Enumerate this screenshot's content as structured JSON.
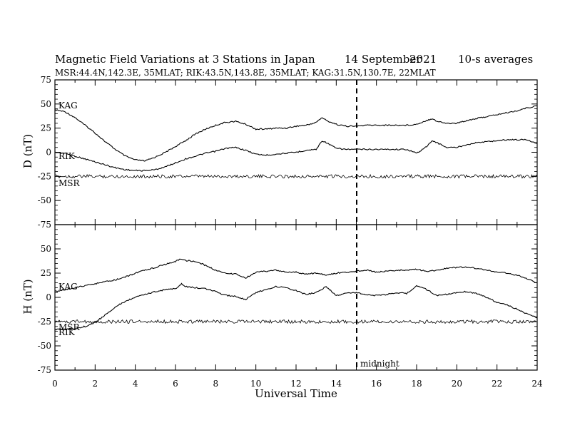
{
  "title": "Magnetic Field Variations at 3 Stations in Japan",
  "date": "14 September",
  "year": "2021",
  "averaging": "10-s averages",
  "stations_line": "MSR:44.4N,142.3E, 35MLAT;  RIK:43.5N,143.8E, 35MLAT;  KAG:31.5N,130.7E, 22MLAT",
  "xlabel": "Universal Time",
  "midnight_label": "midnight",
  "chart_data": [
    {
      "type": "line",
      "panel": "D",
      "ylabel": "D (nT)",
      "xlim": [
        0,
        24
      ],
      "ylim": [
        -75,
        75
      ],
      "yticks": [
        75,
        50,
        25,
        0,
        -25,
        -50,
        -75
      ],
      "xticks": [
        0,
        2,
        4,
        6,
        8,
        10,
        12,
        14,
        16,
        18,
        20,
        22,
        24
      ],
      "series": [
        {
          "name": "KAG",
          "x": [
            0,
            0.5,
            1,
            1.5,
            2,
            2.5,
            3,
            3.5,
            4,
            4.5,
            5,
            5.5,
            6,
            6.5,
            7,
            7.5,
            8,
            8.5,
            9,
            9.5,
            10,
            10.5,
            11,
            11.5,
            12,
            12.5,
            13,
            13.3,
            13.5,
            14,
            14.5,
            15,
            15.5,
            16,
            16.5,
            17,
            17.5,
            18,
            18.5,
            18.8,
            19,
            19.5,
            20,
            20.5,
            21,
            21.5,
            22,
            22.5,
            23,
            23.5,
            24
          ],
          "values": [
            44,
            42,
            36,
            28,
            20,
            11,
            3,
            -4,
            -8,
            -9,
            -5,
            0,
            6,
            12,
            19,
            24,
            28,
            31,
            32,
            29,
            24,
            24,
            25,
            25,
            27,
            28,
            31,
            36,
            33,
            29,
            27,
            27,
            28,
            28,
            28,
            28,
            28,
            29,
            33,
            35,
            32,
            30,
            30,
            33,
            35,
            37,
            39,
            41,
            43,
            46,
            48
          ]
        },
        {
          "name": "RIK",
          "x": [
            0,
            0.5,
            1,
            1.5,
            2,
            2.5,
            3,
            3.5,
            4,
            4.5,
            5,
            5.5,
            6,
            6.5,
            7,
            7.5,
            8,
            8.5,
            9,
            9.5,
            10,
            10.5,
            11,
            11.5,
            12,
            12.5,
            13,
            13.3,
            13.5,
            14,
            14.5,
            15,
            15.5,
            16,
            16.5,
            17,
            17.5,
            18,
            18.5,
            18.8,
            19,
            19.5,
            20,
            20.5,
            21,
            21.5,
            22,
            22.5,
            23,
            23.5,
            24
          ],
          "values": [
            0,
            -1,
            -4,
            -7,
            -10,
            -13,
            -16,
            -18,
            -19,
            -19,
            -18,
            -15,
            -11,
            -7,
            -4,
            -1,
            1,
            4,
            5,
            2,
            -2,
            -3,
            -2,
            -1,
            0,
            2,
            3,
            12,
            10,
            4,
            3,
            3,
            3,
            3,
            3,
            3,
            3,
            -1,
            6,
            12,
            10,
            5,
            5,
            8,
            10,
            11,
            12,
            13,
            13,
            13,
            9
          ]
        },
        {
          "name": "MSR",
          "x": [
            0,
            4,
            8,
            12,
            15,
            18,
            20,
            24
          ],
          "values": [
            -25,
            -25,
            -25,
            -25,
            -25,
            -25,
            -25,
            -25
          ]
        }
      ]
    },
    {
      "type": "line",
      "panel": "H",
      "ylabel": "H (nT)",
      "xlim": [
        0,
        24
      ],
      "ylim": [
        -75,
        75
      ],
      "yticks": [
        50,
        25,
        0,
        -25,
        -50,
        -75
      ],
      "xticks": [
        0,
        2,
        4,
        6,
        8,
        10,
        12,
        14,
        16,
        18,
        20,
        22,
        24
      ],
      "series": [
        {
          "name": "KAG",
          "x": [
            0,
            0.5,
            1,
            1.5,
            2,
            2.5,
            3,
            3.5,
            4,
            4.5,
            5,
            5.5,
            6,
            6.3,
            6.5,
            7,
            7.5,
            8,
            8.5,
            9,
            9.5,
            10,
            10.5,
            11,
            11.5,
            12,
            12.5,
            13,
            13.5,
            14,
            14.5,
            15,
            15.5,
            16,
            16.5,
            17,
            17.5,
            18,
            18.5,
            19,
            19.5,
            20,
            20.5,
            21,
            21.5,
            22,
            22.5,
            23,
            23.5,
            24
          ],
          "values": [
            6,
            8,
            10,
            12,
            14,
            16,
            18,
            21,
            25,
            28,
            31,
            34,
            37,
            40,
            38,
            37,
            33,
            28,
            25,
            24,
            20,
            26,
            27,
            28,
            26,
            26,
            24,
            25,
            23,
            25,
            26,
            27,
            28,
            26,
            27,
            28,
            28,
            29,
            27,
            28,
            30,
            31,
            31,
            30,
            28,
            26,
            25,
            23,
            19,
            15
          ]
        },
        {
          "name": "RIK",
          "x": [
            0,
            0.5,
            1,
            1.5,
            2,
            2.5,
            3,
            3.5,
            4,
            4.5,
            5,
            5.5,
            6,
            6.3,
            6.5,
            7,
            7.5,
            8,
            8.5,
            9,
            9.5,
            10,
            10.5,
            11,
            11.5,
            12,
            12.5,
            13,
            13.5,
            14,
            14.5,
            15,
            15.5,
            16,
            16.5,
            17,
            17.5,
            18,
            18.5,
            19,
            19.5,
            20,
            20.5,
            21,
            21.5,
            22,
            22.5,
            23,
            23.5,
            24
          ],
          "values": [
            -33,
            -33,
            -32,
            -30,
            -26,
            -18,
            -10,
            -4,
            0,
            3,
            6,
            8,
            9,
            14,
            11,
            10,
            9,
            6,
            2,
            1,
            -2,
            5,
            8,
            11,
            10,
            7,
            3,
            5,
            11,
            2,
            4,
            5,
            3,
            2,
            3,
            5,
            4,
            12,
            8,
            2,
            3,
            5,
            6,
            4,
            0,
            -5,
            -8,
            -12,
            -17,
            -21
          ]
        },
        {
          "name": "MSR",
          "x": [
            0,
            4,
            8,
            12,
            15,
            18,
            20,
            24
          ],
          "values": [
            -25,
            -25,
            -25,
            -25,
            -25,
            -25,
            -25,
            -25
          ]
        }
      ]
    }
  ]
}
